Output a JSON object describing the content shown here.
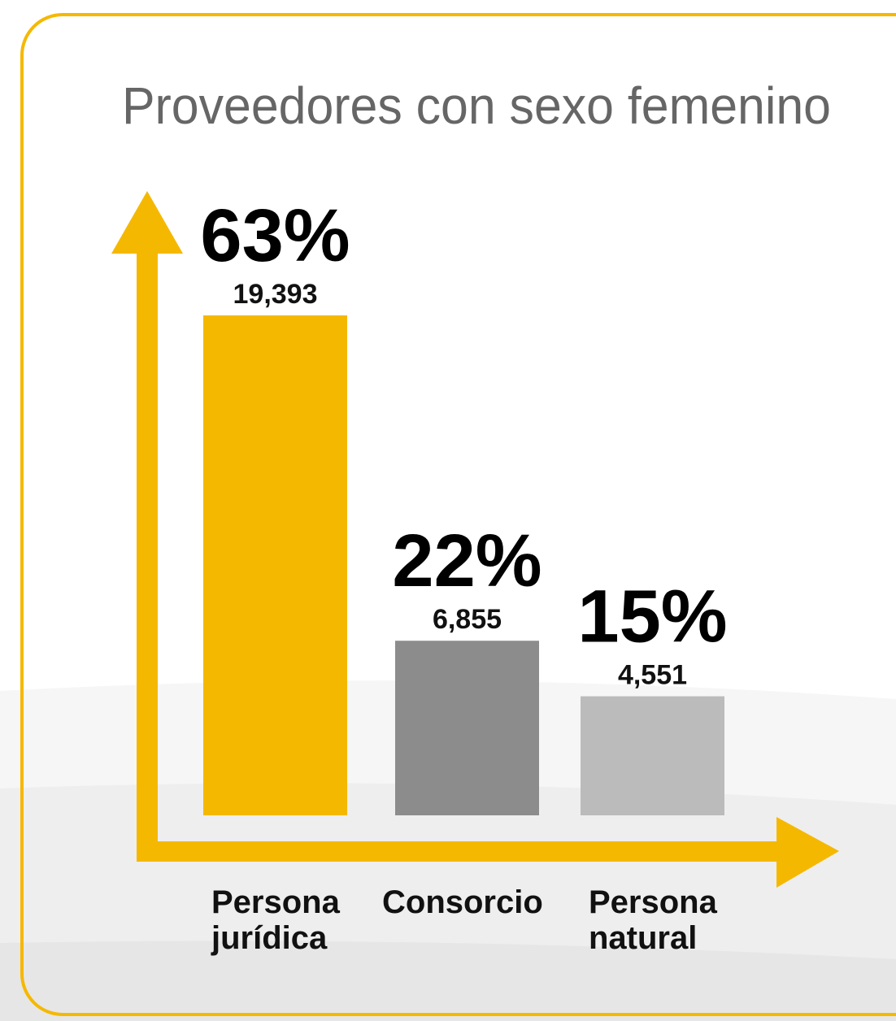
{
  "chart_data": {
    "type": "bar",
    "title": "Proveedores con sexo femenino",
    "categories": [
      "Persona jurídica",
      "Consorcio",
      "Persona natural"
    ],
    "values": [
      63,
      22,
      15
    ],
    "value_labels": [
      "63%",
      "22%",
      "15%"
    ],
    "counts": [
      19393,
      6855,
      4551
    ],
    "count_labels": [
      "19,393",
      "6,855",
      "4,551"
    ],
    "colors": [
      "#f5b800",
      "#8c8c8c",
      "#bbbbbb"
    ]
  }
}
